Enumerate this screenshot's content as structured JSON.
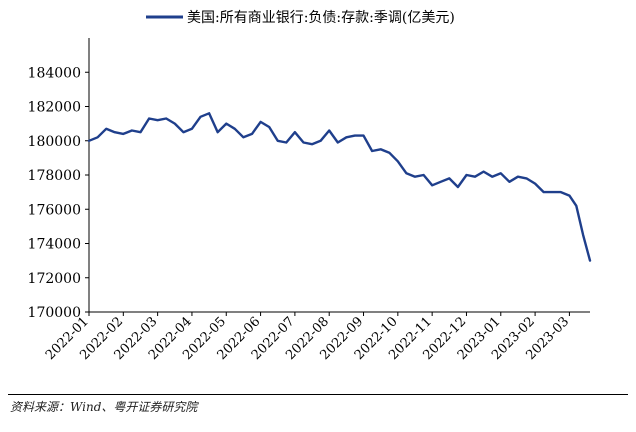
{
  "chart_data": {
    "type": "line",
    "title": "",
    "xlabel": "",
    "ylabel": "",
    "ylim": [
      170000,
      186000
    ],
    "yticks": [
      170000,
      172000,
      174000,
      176000,
      178000,
      180000,
      182000,
      184000
    ],
    "xticks": [
      "2022-01",
      "2022-02",
      "2022-03",
      "2022-04",
      "2022-05",
      "2022-06",
      "2022-07",
      "2022-08",
      "2022-09",
      "2022-10",
      "2022-11",
      "2022-12",
      "2023-01",
      "2023-02",
      "2023-03"
    ],
    "xrange": [
      0,
      14.6
    ],
    "legend_position": "top-center",
    "line_color": "#1f3f8c",
    "series": [
      {
        "name": "美国:所有商业银行:负债:存款:季调(亿美元)",
        "x": [
          0.0,
          0.25,
          0.5,
          0.75,
          1.0,
          1.25,
          1.5,
          1.75,
          2.0,
          2.25,
          2.5,
          2.75,
          3.0,
          3.25,
          3.5,
          3.75,
          4.0,
          4.25,
          4.5,
          4.75,
          5.0,
          5.25,
          5.5,
          5.75,
          6.0,
          6.25,
          6.5,
          6.75,
          7.0,
          7.25,
          7.5,
          7.75,
          8.0,
          8.25,
          8.5,
          8.75,
          9.0,
          9.25,
          9.5,
          9.75,
          10.0,
          10.25,
          10.5,
          10.75,
          11.0,
          11.25,
          11.5,
          11.75,
          12.0,
          12.25,
          12.5,
          12.75,
          13.0,
          13.25,
          13.5,
          13.75,
          14.0,
          14.2,
          14.4,
          14.6
        ],
        "values": [
          180000,
          180200,
          180700,
          180500,
          180400,
          180600,
          180500,
          181300,
          181200,
          181300,
          181000,
          180500,
          180700,
          181400,
          181600,
          180500,
          181000,
          180700,
          180200,
          180400,
          181100,
          180800,
          180000,
          179900,
          180500,
          179900,
          179800,
          180000,
          180600,
          179900,
          180200,
          180300,
          180300,
          179400,
          179500,
          179300,
          178800,
          178100,
          177900,
          178000,
          177400,
          177600,
          177800,
          177300,
          178000,
          177900,
          178200,
          177900,
          178100,
          177600,
          177900,
          177800,
          177500,
          177000,
          177000,
          177000,
          176800,
          176200,
          174500,
          173000
        ]
      }
    ],
    "source": "资料来源：Wind、粤开证券研究院"
  }
}
